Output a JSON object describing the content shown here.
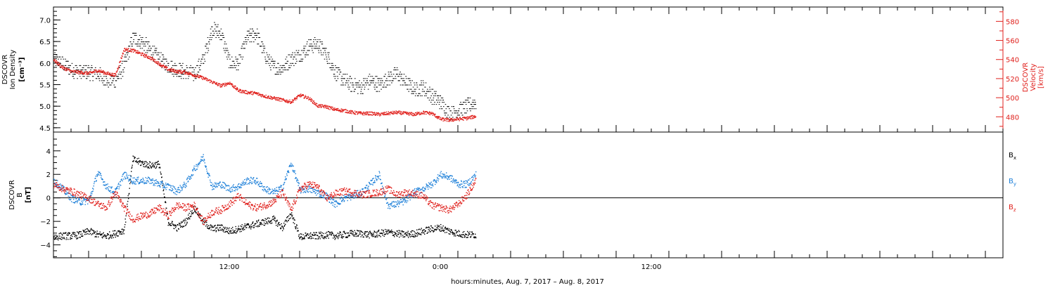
{
  "colors": {
    "black": "#000000",
    "red": "#e0201c",
    "blue": "#1c7fd8"
  },
  "xaxis": {
    "label": "hours:minutes, Aug.  7, 2017 – Aug.  8, 2017",
    "range_hours": [
      0,
      54
    ],
    "start_time": "Aug 7, 2017 02:00",
    "ticks": [
      {
        "h": 10,
        "label": "12:00"
      },
      {
        "h": 22,
        "label": "0:00"
      },
      {
        "h": 34,
        "label": "12:00"
      }
    ]
  },
  "chart_data": [
    {
      "type": "scatter",
      "title": "",
      "left_axis": {
        "label_lines": [
          "DSCOVR",
          "Ion Density"
        ],
        "units": "[cm⁻³]",
        "ylim": [
          4.4,
          7.3
        ],
        "ticks": [
          {
            "v": 4.5,
            "label": "4.5"
          },
          {
            "v": 5.0,
            "label": "5.0"
          },
          {
            "v": 5.5,
            "label": "5.5"
          },
          {
            "v": 6.0,
            "label": "6.0"
          },
          {
            "v": 6.5,
            "label": "6.5"
          },
          {
            "v": 7.0,
            "label": "7.0"
          }
        ]
      },
      "right_axis": {
        "label_lines": [
          "DSCOVR",
          "Velocity",
          "[km/s]"
        ],
        "ylim": [
          464,
          595
        ],
        "ticks": [
          {
            "v": 480,
            "label": "480"
          },
          {
            "v": 500,
            "label": "500"
          },
          {
            "v": 520,
            "label": "520"
          },
          {
            "v": 540,
            "label": "540"
          },
          {
            "v": 560,
            "label": "560"
          },
          {
            "v": 580,
            "label": "580"
          }
        ]
      },
      "series": [
        {
          "key": "density",
          "axis": "left",
          "color": "#000000",
          "style": "quantized-points",
          "x": [
            0,
            0.5,
            1,
            1.5,
            2,
            2.5,
            3,
            3.5,
            4,
            4.5,
            5,
            5.5,
            6,
            6.5,
            7,
            7.5,
            8,
            8.5,
            9,
            9.5,
            10,
            10.5,
            11,
            11.5,
            12,
            12.5,
            13,
            13.5,
            14,
            14.5,
            15,
            15.5,
            16,
            16.5,
            17,
            17.5,
            18,
            18.5,
            19,
            19.5,
            20,
            20.5,
            21,
            21.5,
            22,
            22.5,
            23,
            23.5,
            24
          ],
          "y": [
            6.1,
            6.0,
            5.85,
            5.8,
            5.8,
            5.75,
            5.6,
            5.6,
            5.95,
            6.6,
            6.5,
            6.3,
            6.1,
            5.95,
            5.85,
            5.8,
            5.75,
            6.1,
            6.8,
            6.7,
            6.0,
            6.0,
            6.6,
            6.7,
            6.2,
            5.9,
            5.9,
            6.1,
            6.2,
            6.4,
            6.45,
            6.2,
            5.8,
            5.6,
            5.5,
            5.45,
            5.6,
            5.5,
            5.65,
            5.75,
            5.55,
            5.4,
            5.45,
            5.25,
            5.1,
            4.85,
            4.9,
            5.0,
            5.1
          ]
        },
        {
          "key": "velocity",
          "axis": "right",
          "color": "#e0201c",
          "style": "points",
          "x": [
            0,
            0.5,
            1,
            1.5,
            2,
            2.5,
            3,
            3.5,
            4,
            4.5,
            5,
            5.5,
            6,
            6.5,
            7,
            7.5,
            8,
            8.5,
            9,
            9.5,
            10,
            10.5,
            11,
            11.5,
            12,
            12.5,
            13,
            13.5,
            14,
            14.5,
            15,
            15.5,
            16,
            16.5,
            17,
            17.5,
            18,
            18.5,
            19,
            19.5,
            20,
            20.5,
            21,
            21.5,
            22,
            22.5,
            23,
            23.5,
            24
          ],
          "y": [
            540,
            532,
            528,
            527,
            526,
            529,
            526,
            524,
            551,
            550,
            546,
            542,
            536,
            530,
            528,
            527,
            524,
            521,
            517,
            513,
            516,
            508,
            506,
            505,
            502,
            500,
            498,
            496,
            503,
            500,
            492,
            491,
            488,
            487,
            485,
            484,
            484,
            483,
            484,
            485,
            484,
            483,
            485,
            484,
            478,
            477,
            478,
            479,
            481
          ]
        }
      ]
    },
    {
      "type": "scatter",
      "title": "",
      "left_axis": {
        "label_lines": [
          "DSCOVR",
          "B"
        ],
        "units": "[nT]",
        "ylim": [
          -5.1,
          5.6
        ],
        "ticks": [
          {
            "v": -4,
            "label": "−4"
          },
          {
            "v": -2,
            "label": "−2"
          },
          {
            "v": 0,
            "label": "0"
          },
          {
            "v": 2,
            "label": "2"
          },
          {
            "v": 4,
            "label": "4"
          }
        ]
      },
      "zero_line": true,
      "legend": {
        "placement": "right",
        "entries": [
          {
            "base": "B",
            "sub": "x",
            "color": "#000000"
          },
          {
            "base": "B",
            "sub": "y",
            "color": "#1c7fd8"
          },
          {
            "base": "B",
            "sub": "z",
            "color": "#e0201c"
          }
        ]
      },
      "series": [
        {
          "key": "bx",
          "color": "#000000",
          "x": [
            0,
            0.5,
            1,
            1.5,
            2,
            2.5,
            3,
            3.5,
            4,
            4.5,
            5,
            5.5,
            6,
            6.5,
            7,
            7.5,
            8,
            8.5,
            9,
            9.5,
            10,
            10.5,
            11,
            11.5,
            12,
            12.5,
            13,
            13.5,
            14,
            14.5,
            15,
            15.5,
            16,
            16.5,
            17,
            17.5,
            18,
            18.5,
            19,
            19.5,
            20,
            20.5,
            21,
            21.5,
            22,
            22.5,
            23,
            23.5,
            24
          ],
          "y": [
            -3.3,
            -3.2,
            -3.2,
            -3.1,
            -2.8,
            -3.1,
            -3.2,
            -3.0,
            -2.7,
            3.3,
            3.0,
            2.8,
            2.9,
            -2.0,
            -2.5,
            -2.0,
            -0.8,
            -2.0,
            -2.6,
            -2.5,
            -2.8,
            -2.6,
            -2.4,
            -2.2,
            -2.0,
            -1.8,
            -2.5,
            -1.3,
            -3.3,
            -3.2,
            -3.2,
            -3.1,
            -3.2,
            -3.1,
            -3.0,
            -3.0,
            -3.1,
            -3.0,
            -2.9,
            -3.0,
            -3.1,
            -3.0,
            -2.8,
            -2.6,
            -2.5,
            -2.8,
            -3.0,
            -3.1,
            -3.1
          ]
        },
        {
          "key": "by",
          "color": "#1c7fd8",
          "x": [
            0,
            0.5,
            1,
            1.5,
            2,
            2.5,
            3,
            3.5,
            4,
            4.5,
            5,
            5.5,
            6,
            6.5,
            7,
            7.5,
            8,
            8.5,
            9,
            9.5,
            10,
            10.5,
            11,
            11.5,
            12,
            12.5,
            13,
            13.5,
            14,
            14.5,
            15,
            15.5,
            16,
            16.5,
            17,
            17.5,
            18,
            18.5,
            19,
            19.5,
            20,
            20.5,
            21,
            21.5,
            22,
            22.5,
            23,
            23.5,
            24
          ],
          "y": [
            1.5,
            0.8,
            0.0,
            -0.3,
            -0.2,
            2.2,
            1.0,
            0.5,
            2.0,
            1.5,
            1.5,
            1.5,
            1.2,
            1.0,
            0.6,
            1.2,
            2.5,
            3.5,
            1.0,
            1.2,
            0.8,
            1.0,
            1.5,
            1.5,
            0.8,
            0.5,
            0.9,
            3.0,
            0.7,
            0.8,
            0.5,
            0.2,
            -0.5,
            0.0,
            0.2,
            0.5,
            1.2,
            2.0,
            -0.6,
            -0.5,
            -0.2,
            0.5,
            0.8,
            1.2,
            2.0,
            1.8,
            1.2,
            1.2,
            2.0
          ]
        },
        {
          "key": "bz",
          "color": "#e0201c",
          "x": [
            0,
            0.5,
            1,
            1.5,
            2,
            2.5,
            3,
            3.5,
            4,
            4.5,
            5,
            5.5,
            6,
            6.5,
            7,
            7.5,
            8,
            8.5,
            9,
            9.5,
            10,
            10.5,
            11,
            11.5,
            12,
            12.5,
            13,
            13.5,
            14,
            14.5,
            15,
            15.5,
            16,
            16.5,
            17,
            17.5,
            18,
            18.5,
            19,
            19.5,
            20,
            20.5,
            21,
            21.5,
            22,
            22.5,
            23,
            23.5,
            24
          ],
          "y": [
            1.2,
            0.8,
            0.6,
            0.3,
            0.0,
            -0.5,
            -0.8,
            0.5,
            -0.8,
            -1.8,
            -1.5,
            -1.3,
            -0.8,
            -1.5,
            -0.6,
            -0.8,
            -0.6,
            -2.0,
            -1.2,
            -1.0,
            -0.5,
            0.2,
            -0.5,
            -0.8,
            -0.6,
            -0.3,
            0.5,
            -1.0,
            0.8,
            1.2,
            1.0,
            0.0,
            0.4,
            0.6,
            0.5,
            0.3,
            0.4,
            0.5,
            0.8,
            0.3,
            0.5,
            0.4,
            0.2,
            -0.6,
            -0.8,
            -1.0,
            -0.5,
            0.3,
            1.5
          ]
        }
      ]
    }
  ]
}
